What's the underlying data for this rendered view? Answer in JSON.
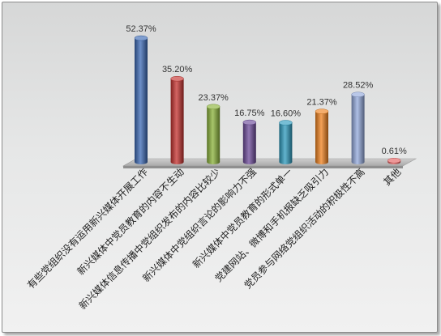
{
  "chart_data": {
    "type": "bar",
    "categories": [
      "有些党组织没有运用新兴媒体开展工作",
      "新兴媒体中党员教育的内容不生动",
      "新兴媒体信息传播中党组织发布的内容比较少",
      "新兴媒体中党组织言论的影响力不强",
      "新兴媒体中党员教育的形式单一",
      "党建网站、微博和手机报缺乏吸引力",
      "党员参与网络党组织活动的积极性不高",
      "其他"
    ],
    "values": [
      52.37,
      35.2,
      23.37,
      16.75,
      16.6,
      21.37,
      28.52,
      0.61
    ],
    "data_labels": [
      "52.37%",
      "35.20%",
      "23.37%",
      "16.75%",
      "16.60%",
      "21.37%",
      "28.52%",
      "0.61%"
    ],
    "colors": [
      "#3c6ab5",
      "#c6322f",
      "#8bb33a",
      "#6d4b9b",
      "#2d9bbe",
      "#f0821f",
      "#93a9dc",
      "#e36060"
    ],
    "ylim": [
      0,
      55
    ],
    "grid": false,
    "legend": "none"
  }
}
